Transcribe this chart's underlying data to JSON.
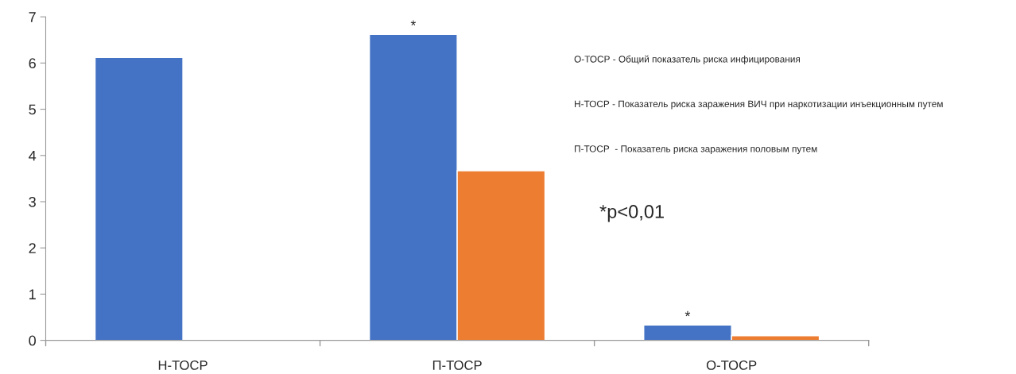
{
  "chart_data": {
    "type": "bar",
    "categories": [
      "Н-ТОСР",
      "П-ТОСР",
      "О-ТОСР"
    ],
    "series": [
      {
        "color": "#4472c4",
        "values": [
          6.12,
          6.62,
          0.33
        ]
      },
      {
        "color": "#ed7d31",
        "values": [
          null,
          3.67,
          0.1
        ]
      }
    ],
    "ylim": [
      0,
      7
    ],
    "yticks": [
      0,
      1,
      2,
      3,
      4,
      5,
      6,
      7
    ],
    "grid": false,
    "legend": false,
    "annotations": [
      {
        "text": "*",
        "x": "П-ТОСР",
        "y": 6.62
      },
      {
        "text": "*",
        "x": "О-ТОСР",
        "y": 0.33
      },
      "О-ТОСР - Общий показатель риска инфицирования",
      "Н-ТОСР - Показатель риска заражения ВИЧ при наркотизации инъекционным путем",
      "П-ТОСР  - Показатель риска заражения половым путем",
      "*p<0,01"
    ]
  }
}
